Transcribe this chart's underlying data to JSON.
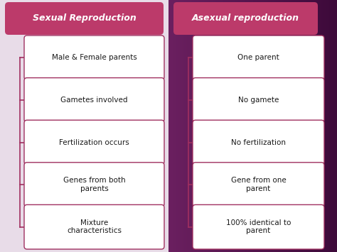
{
  "bg_left_color": "#e8dce8",
  "bg_right_color_left": "#6b2060",
  "bg_right_color_right": "#3d0a3a",
  "header_color": "#bc3a6a",
  "box_border_color": "#a03060",
  "box_bg_color": "#ffffff",
  "text_color": "#1a1a1a",
  "header_text_color": "#ffffff",
  "left_header": "Sexual Reproduction",
  "right_header": "Asexual reproduction",
  "left_items": [
    "Male & Female parents",
    "Gametes involved",
    "Fertilization occurs",
    "Genes from both\nparents",
    "Mixture\ncharacteristics"
  ],
  "right_items": [
    "One parent",
    "No gamete",
    "No fertilization",
    "Gene from one\nparent",
    "100% identical to\nparent"
  ],
  "connector_color": "#a03060",
  "fig_width": 4.74,
  "fig_height": 3.55,
  "dpi": 100
}
